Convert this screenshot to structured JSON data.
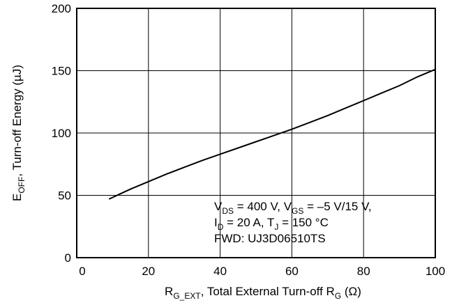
{
  "chart_data": {
    "type": "line",
    "title": "",
    "xlabel": {
      "parts": [
        {
          "text": "R",
          "sub": "G_EXT"
        },
        {
          "text": ", Total External Turn-off R",
          "sub": "G"
        },
        {
          "text": " (Ω)",
          "sub": ""
        }
      ]
    },
    "ylabel": {
      "parts": [
        {
          "text": "E",
          "sub": "OFF"
        },
        {
          "text": ", Turn-off Energy (µJ)",
          "sub": ""
        }
      ]
    },
    "xlim": [
      0,
      100
    ],
    "ylim": [
      0,
      200
    ],
    "xticks": [
      "0",
      "20",
      "40",
      "60",
      "80",
      "100"
    ],
    "yticks": [
      "0",
      "50",
      "100",
      "150",
      "200"
    ],
    "grid": true,
    "series": [
      {
        "x": [
          9,
          12,
          15,
          20,
          25,
          30,
          35,
          40,
          45,
          50,
          55,
          60,
          65,
          70,
          75,
          80,
          85,
          90,
          95,
          100
        ],
        "y": [
          47,
          51,
          55,
          61,
          67,
          72.5,
          78,
          83,
          88,
          93,
          98,
          103,
          108.5,
          114,
          120,
          126,
          132,
          138,
          145,
          151
        ]
      }
    ],
    "annotation": {
      "lines": [
        [
          {
            "text": "V",
            "sub": "DS"
          },
          {
            "text": " = 400 V, V",
            "sub": "GS"
          },
          {
            "text": " = –5 V/15 V,",
            "sub": ""
          }
        ],
        [
          {
            "text": "I",
            "sub": "D"
          },
          {
            "text": " = 20 A, T",
            "sub": "J"
          },
          {
            "text": " = 150 °C",
            "sub": ""
          }
        ],
        [
          {
            "text": "FWD: UJ3D06510TS",
            "sub": ""
          }
        ]
      ]
    }
  }
}
